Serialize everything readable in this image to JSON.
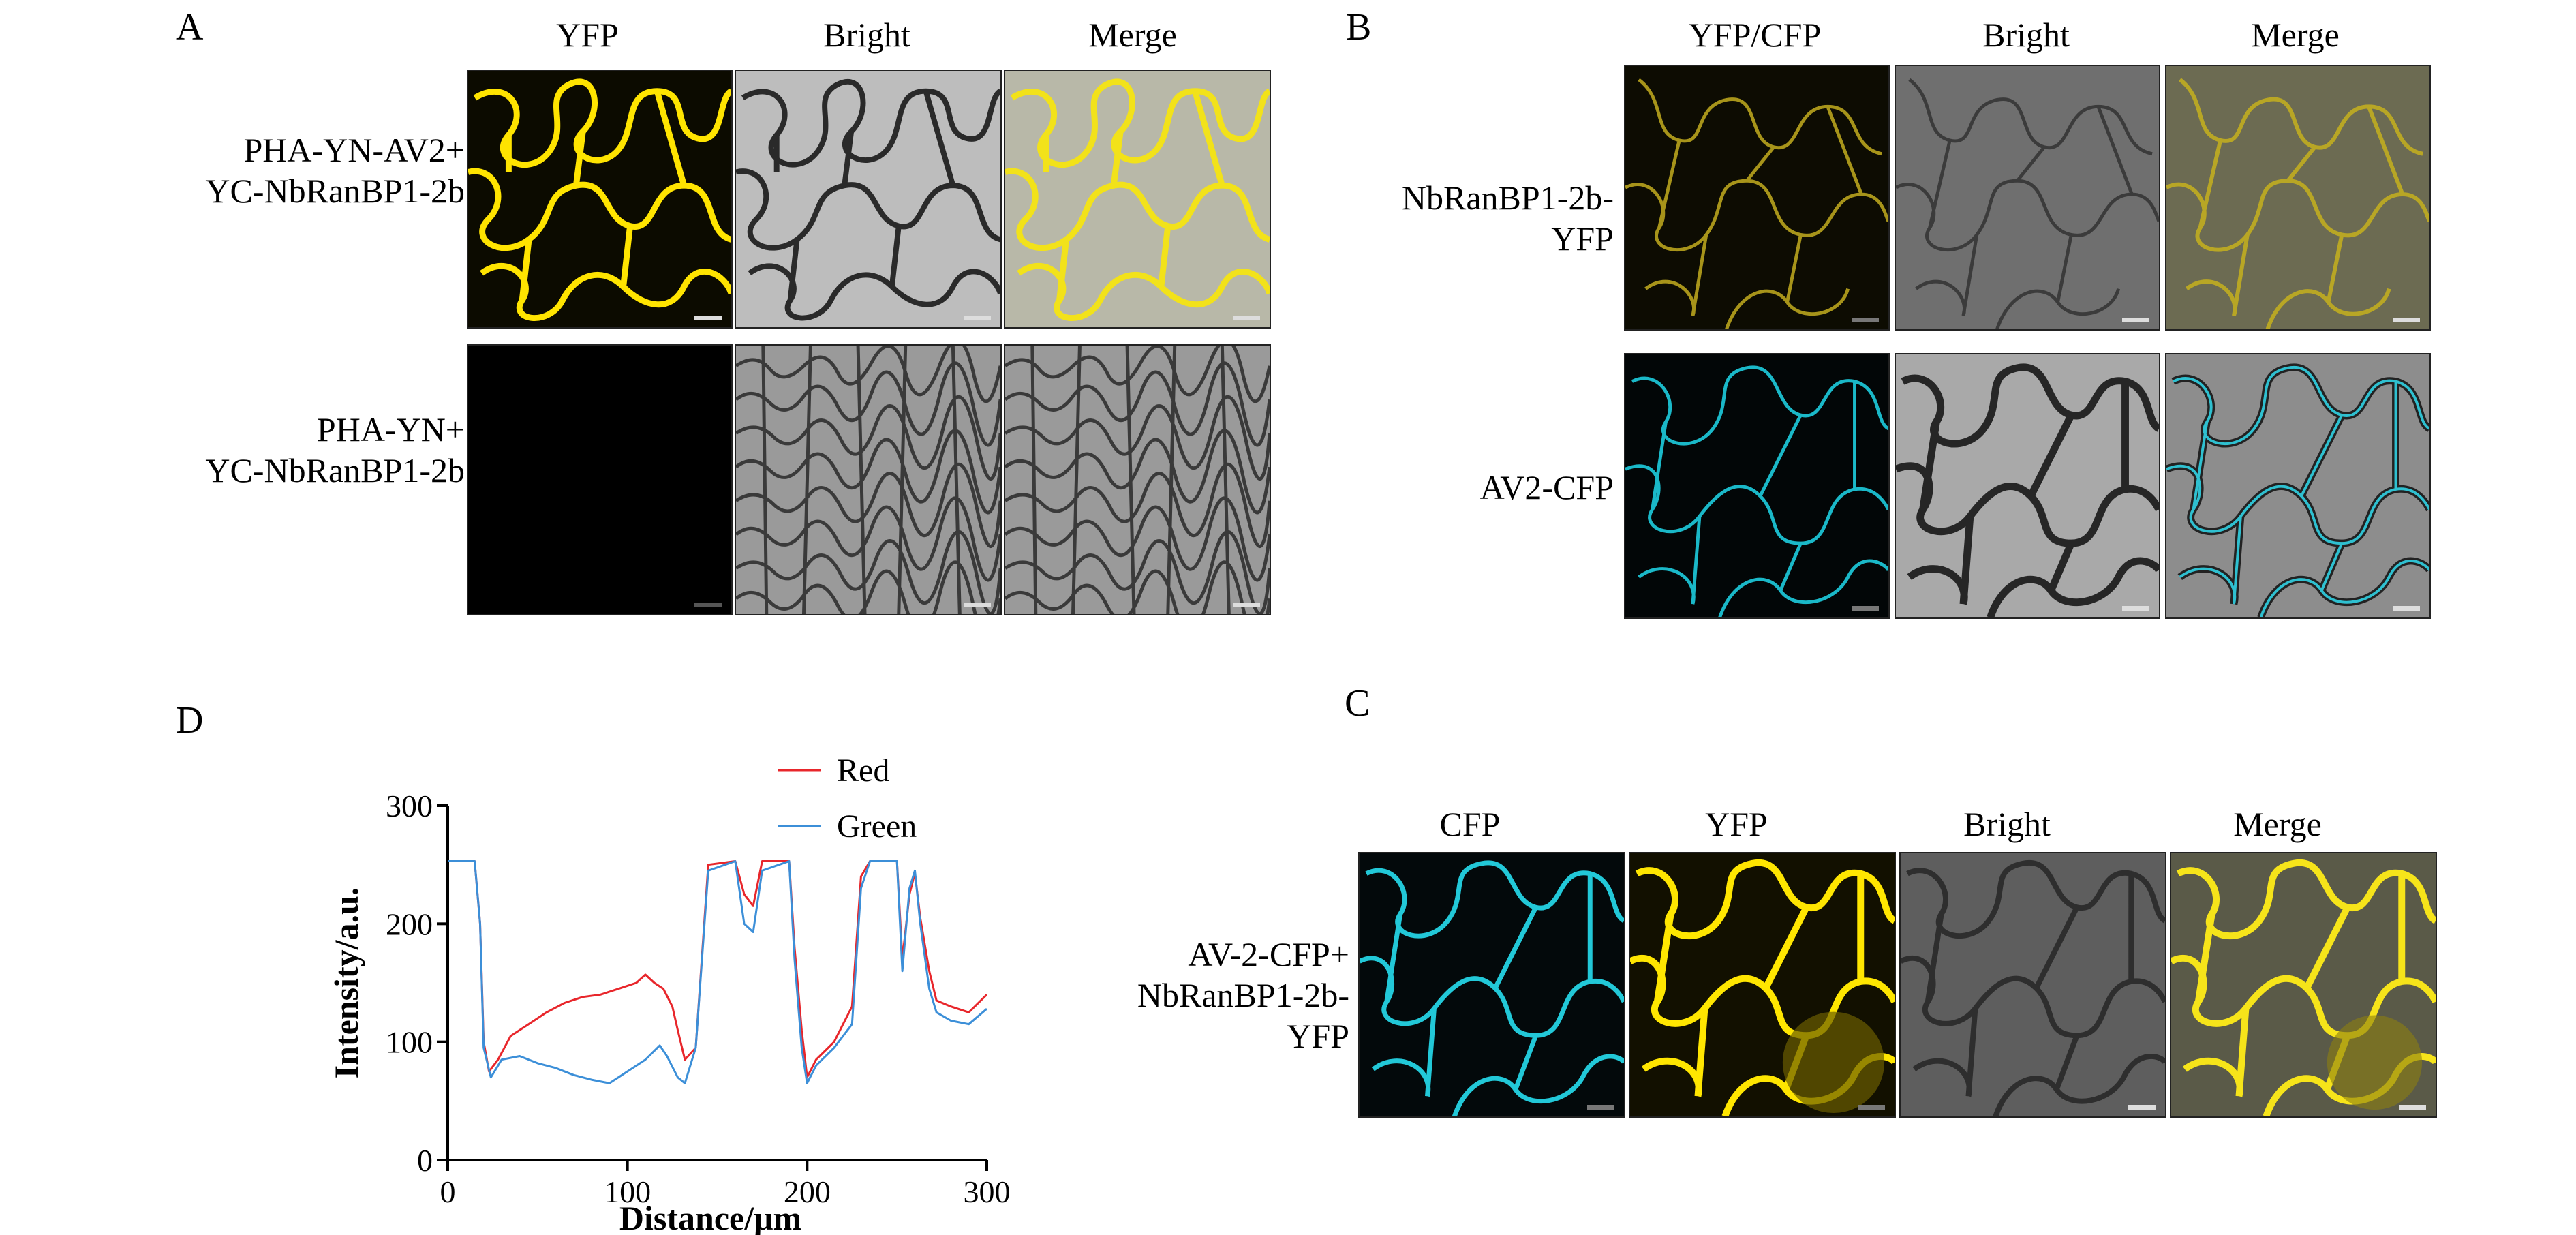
{
  "panels": {
    "A": {
      "letter": "A",
      "columns": [
        "YFP",
        "Bright",
        "Merge"
      ],
      "rows": [
        {
          "label_line1": "PHA-YN-AV2+",
          "label_line2": "YC-NbRanBP1-2b"
        },
        {
          "label_line1": "PHA-YN+",
          "label_line2": "YC-NbRanBP1-2b"
        }
      ]
    },
    "B": {
      "letter": "B",
      "columns": [
        "YFP/CFP",
        "Bright",
        "Merge"
      ],
      "rows": [
        {
          "label_line1": "NbRanBP1-2b-",
          "label_line2": "YFP"
        },
        {
          "label_line1": "AV2-CFP",
          "label_line2": ""
        }
      ]
    },
    "C": {
      "letter": "C",
      "columns": [
        "CFP",
        "YFP",
        "Bright",
        "Merge"
      ],
      "row": {
        "label_line1": "AV-2-CFP+",
        "label_line2": "NbRanBP1-2b-",
        "label_line3": "YFP"
      }
    },
    "D": {
      "letter": "D"
    }
  },
  "chart_data": {
    "type": "line",
    "xlabel": "Distance/μm",
    "ylabel": "Intensity/a.u.",
    "xlim": [
      0,
      300
    ],
    "ylim": [
      0,
      300
    ],
    "xticks": [
      "0",
      "100",
      "200",
      "300"
    ],
    "yticks": [
      "0",
      "100",
      "200",
      "300"
    ],
    "legend": [
      "Red",
      "Green"
    ],
    "legend_position": "top-right",
    "series": [
      {
        "name": "Red",
        "color": "#e8262b",
        "points": [
          [
            0,
            253
          ],
          [
            15,
            253
          ],
          [
            18,
            200
          ],
          [
            20,
            100
          ],
          [
            23,
            75
          ],
          [
            28,
            85
          ],
          [
            35,
            105
          ],
          [
            45,
            115
          ],
          [
            55,
            125
          ],
          [
            65,
            133
          ],
          [
            75,
            138
          ],
          [
            85,
            140
          ],
          [
            95,
            145
          ],
          [
            105,
            150
          ],
          [
            110,
            157
          ],
          [
            115,
            150
          ],
          [
            120,
            145
          ],
          [
            125,
            130
          ],
          [
            128,
            110
          ],
          [
            132,
            85
          ],
          [
            138,
            95
          ],
          [
            145,
            250
          ],
          [
            160,
            253
          ],
          [
            165,
            225
          ],
          [
            170,
            215
          ],
          [
            175,
            253
          ],
          [
            190,
            253
          ],
          [
            193,
            180
          ],
          [
            197,
            110
          ],
          [
            200,
            70
          ],
          [
            205,
            85
          ],
          [
            215,
            100
          ],
          [
            225,
            130
          ],
          [
            230,
            240
          ],
          [
            235,
            253
          ],
          [
            250,
            253
          ],
          [
            253,
            170
          ],
          [
            257,
            225
          ],
          [
            260,
            243
          ],
          [
            263,
            205
          ],
          [
            268,
            160
          ],
          [
            272,
            135
          ],
          [
            280,
            130
          ],
          [
            290,
            125
          ],
          [
            300,
            140
          ]
        ]
      },
      {
        "name": "Green",
        "color": "#3c8fd8",
        "points": [
          [
            0,
            253
          ],
          [
            15,
            253
          ],
          [
            18,
            200
          ],
          [
            20,
            95
          ],
          [
            24,
            70
          ],
          [
            30,
            85
          ],
          [
            40,
            88
          ],
          [
            50,
            82
          ],
          [
            60,
            78
          ],
          [
            70,
            72
          ],
          [
            80,
            68
          ],
          [
            90,
            65
          ],
          [
            100,
            75
          ],
          [
            110,
            85
          ],
          [
            118,
            97
          ],
          [
            122,
            88
          ],
          [
            128,
            70
          ],
          [
            132,
            65
          ],
          [
            138,
            95
          ],
          [
            145,
            245
          ],
          [
            160,
            253
          ],
          [
            165,
            200
          ],
          [
            170,
            193
          ],
          [
            175,
            245
          ],
          [
            190,
            253
          ],
          [
            193,
            170
          ],
          [
            197,
            95
          ],
          [
            200,
            65
          ],
          [
            205,
            80
          ],
          [
            215,
            95
          ],
          [
            225,
            115
          ],
          [
            230,
            230
          ],
          [
            235,
            253
          ],
          [
            250,
            253
          ],
          [
            253,
            160
          ],
          [
            257,
            230
          ],
          [
            260,
            245
          ],
          [
            263,
            200
          ],
          [
            268,
            145
          ],
          [
            272,
            125
          ],
          [
            280,
            118
          ],
          [
            290,
            115
          ],
          [
            300,
            128
          ]
        ]
      }
    ]
  }
}
